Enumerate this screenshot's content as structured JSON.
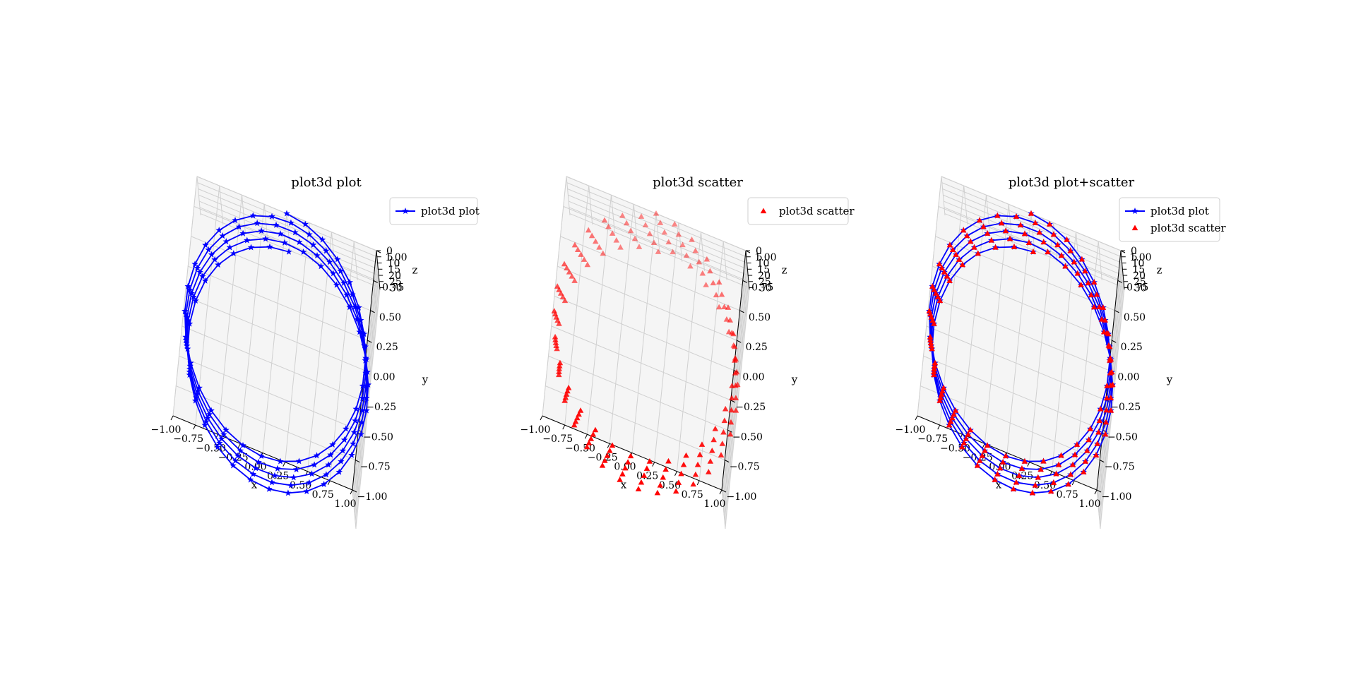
{
  "chart_data": [
    {
      "type": "line3d",
      "title": "plot3d plot",
      "xlabel": "x",
      "ylabel": "y",
      "zlabel": "z",
      "xlim": [
        -1.0,
        1.0
      ],
      "ylim": [
        -1.0,
        1.0
      ],
      "zlim": [
        0,
        31.4
      ],
      "xticks": [
        "−1.00",
        "−0.75",
        "−0.50",
        "−0.25",
        "0.00",
        "0.25",
        "0.50",
        "0.75",
        "1.00"
      ],
      "yticks": [
        "−1.00",
        "−0.75",
        "−0.50",
        "−0.25",
        "0.00",
        "0.25",
        "0.50",
        "0.75",
        "1.00"
      ],
      "zticks": [
        "0",
        "5",
        "10",
        "15",
        "20",
        "25",
        "30"
      ],
      "legend_position": "upper-right",
      "series": [
        {
          "name": "plot3d plot",
          "kind": "line",
          "marker": "star",
          "color": "#0000ff",
          "parametric": {
            "x": "sin(t)",
            "y": "cos(t)",
            "z": "t",
            "t_start": 0,
            "t_end": 31.4,
            "samples": 150
          }
        }
      ]
    },
    {
      "type": "scatter3d",
      "title": "plot3d scatter",
      "xlabel": "x",
      "ylabel": "y",
      "zlabel": "z",
      "xlim": [
        -1.0,
        1.0
      ],
      "ylim": [
        -1.0,
        1.0
      ],
      "zlim": [
        0,
        31.4
      ],
      "xticks": [
        "−1.00",
        "−0.75",
        "−0.50",
        "−0.25",
        "0.00",
        "0.25",
        "0.50",
        "0.75",
        "1.00"
      ],
      "yticks": [
        "−1.00",
        "−0.75",
        "−0.50",
        "−0.25",
        "0.00",
        "0.25",
        "0.50",
        "0.75",
        "1.00"
      ],
      "zticks": [
        "0",
        "5",
        "10",
        "15",
        "20",
        "25",
        "30"
      ],
      "legend_position": "upper-right",
      "series": [
        {
          "name": "plot3d scatter",
          "kind": "scatter",
          "marker": "triangle",
          "color": "#ff0000",
          "parametric": {
            "x": "sin(t)",
            "y": "cos(t)",
            "z": "t",
            "t_start": 0,
            "t_end": 31.4,
            "samples": 150
          }
        }
      ]
    },
    {
      "type": "line3d+scatter3d",
      "title": "plot3d plot+scatter",
      "xlabel": "x",
      "ylabel": "y",
      "zlabel": "z",
      "xlim": [
        -1.0,
        1.0
      ],
      "ylim": [
        -1.0,
        1.0
      ],
      "zlim": [
        0,
        31.4
      ],
      "xticks": [
        "−1.00",
        "−0.75",
        "−0.50",
        "−0.25",
        "0.00",
        "0.25",
        "0.50",
        "0.75",
        "1.00"
      ],
      "yticks": [
        "−1.00",
        "−0.75",
        "−0.50",
        "−0.25",
        "0.00",
        "0.25",
        "0.50",
        "0.75",
        "1.00"
      ],
      "zticks": [
        "0",
        "5",
        "10",
        "15",
        "20",
        "25",
        "30"
      ],
      "legend_position": "upper-right",
      "series": [
        {
          "name": "plot3d plot",
          "kind": "line",
          "marker": "star",
          "color": "#0000ff",
          "parametric": {
            "x": "sin(t)",
            "y": "cos(t)",
            "z": "t",
            "t_start": 0,
            "t_end": 31.4,
            "samples": 150
          }
        },
        {
          "name": "plot3d scatter",
          "kind": "scatter",
          "marker": "triangle",
          "color": "#ff0000",
          "parametric": {
            "x": "sin(t)",
            "y": "cos(t)",
            "z": "t",
            "t_start": 0,
            "t_end": 31.4,
            "samples": 150
          }
        }
      ]
    }
  ]
}
